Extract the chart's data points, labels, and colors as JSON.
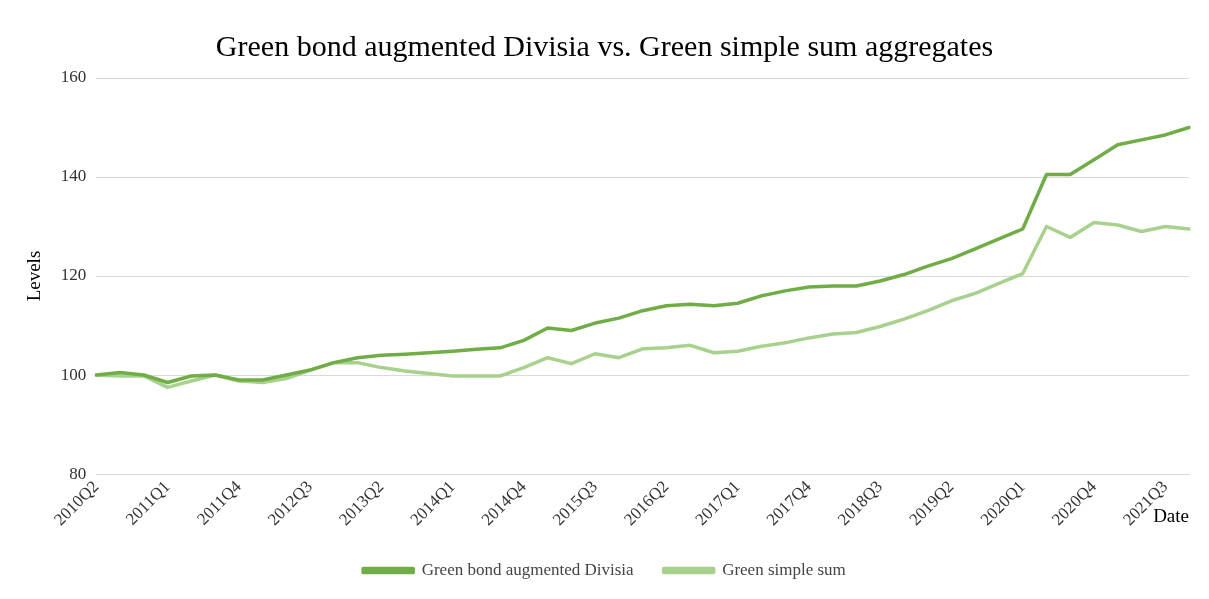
{
  "chart_data": {
    "type": "line",
    "title": "Green bond augmented Divisia vs. Green simple sum aggregates",
    "xlabel": "Date",
    "ylabel": "Levels",
    "categories": [
      "2010Q2",
      null,
      null,
      "2011Q1",
      null,
      null,
      "2011Q4",
      null,
      null,
      "2012Q3",
      null,
      null,
      "2013Q2",
      null,
      null,
      "2014Q1",
      null,
      null,
      "2014Q4",
      null,
      null,
      "2015Q3",
      null,
      null,
      "2016Q2",
      null,
      null,
      "2017Q1",
      null,
      null,
      "2017Q4",
      null,
      null,
      "2018Q3",
      null,
      null,
      "2019Q2",
      null,
      null,
      "2020Q1",
      null,
      null,
      "2020Q4",
      null,
      null,
      "2021Q3",
      null
    ],
    "series": [
      {
        "name": "Green bond augmented Divisia",
        "color": "#70ad47",
        "values": [
          100,
          100.5,
          100,
          98.5,
          99.8,
          100,
          99,
          99,
          100,
          101,
          102.5,
          103.5,
          104,
          104.2,
          104.5,
          104.8,
          105.2,
          105.5,
          107,
          109.5,
          109,
          110.5,
          111.5,
          113,
          114,
          114.3,
          114,
          114.5,
          116,
          117,
          117.8,
          118,
          118,
          119,
          120.3,
          122,
          123.5,
          125.5,
          127.5,
          129.5,
          140.5,
          140.5,
          143.5,
          146.5,
          147.5,
          148.5,
          150
        ]
      },
      {
        "name": "Green simple sum",
        "color": "#a9d18e",
        "values": [
          100,
          99.8,
          99.8,
          97.5,
          98.8,
          100,
          98.8,
          98.5,
          99.3,
          101,
          102.5,
          102.5,
          101.5,
          100.8,
          100.3,
          99.8,
          99.8,
          99.8,
          101.5,
          103.5,
          102.3,
          104.3,
          103.5,
          105.3,
          105.5,
          106,
          104.5,
          104.8,
          105.8,
          106.5,
          107.5,
          108.3,
          108.6,
          109.8,
          111.3,
          113,
          115,
          116.5,
          118.5,
          120.5,
          130,
          127.8,
          130.8,
          130.3,
          129,
          130,
          129.5
        ]
      }
    ],
    "ylim": [
      80,
      160
    ],
    "yticks": [
      80,
      100,
      120,
      140,
      160
    ],
    "grid": "y",
    "legend": "bottom",
    "marker": "none",
    "line_style": "solid"
  }
}
